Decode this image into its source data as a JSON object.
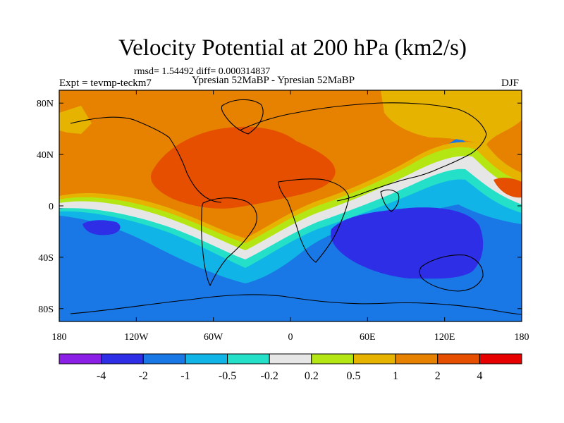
{
  "chart_data": {
    "type": "contour-map",
    "title": "Velocity Potential at 200 hPa (km2/s)",
    "stats": "rmsd= 1.54492 diff= 0.000314837",
    "left_label": "Expt = tevmp-teckm7",
    "center_label": "Ypresian  52MaBP - Ypresian  52MaBP",
    "right_label": "DJF",
    "x_range": [
      -180,
      180
    ],
    "y_range": [
      -90,
      90
    ],
    "x_ticks": [
      {
        "value": -180,
        "label": "180"
      },
      {
        "value": -120,
        "label": "120W"
      },
      {
        "value": -60,
        "label": "60W"
      },
      {
        "value": 0,
        "label": "0"
      },
      {
        "value": 60,
        "label": "60E"
      },
      {
        "value": 120,
        "label": "120E"
      },
      {
        "value": 180,
        "label": "180"
      }
    ],
    "y_ticks": [
      {
        "value": 80,
        "label": "80N"
      },
      {
        "value": 40,
        "label": "40N"
      },
      {
        "value": 0,
        "label": "0"
      },
      {
        "value": -40,
        "label": "40S"
      },
      {
        "value": -80,
        "label": "80S"
      }
    ],
    "colorbar": {
      "colors": [
        "#8c1fe6",
        "#2e2ee6",
        "#1a78e6",
        "#10b4e6",
        "#24e0c8",
        "#e6e6e6",
        "#b4e614",
        "#e6b400",
        "#e68200",
        "#e64e00",
        "#e60000"
      ],
      "boundaries": [
        "-4",
        "-2",
        "-1",
        "-0.5",
        "-0.2",
        "0.2",
        "0.5",
        "1",
        "2",
        "4"
      ]
    }
  }
}
